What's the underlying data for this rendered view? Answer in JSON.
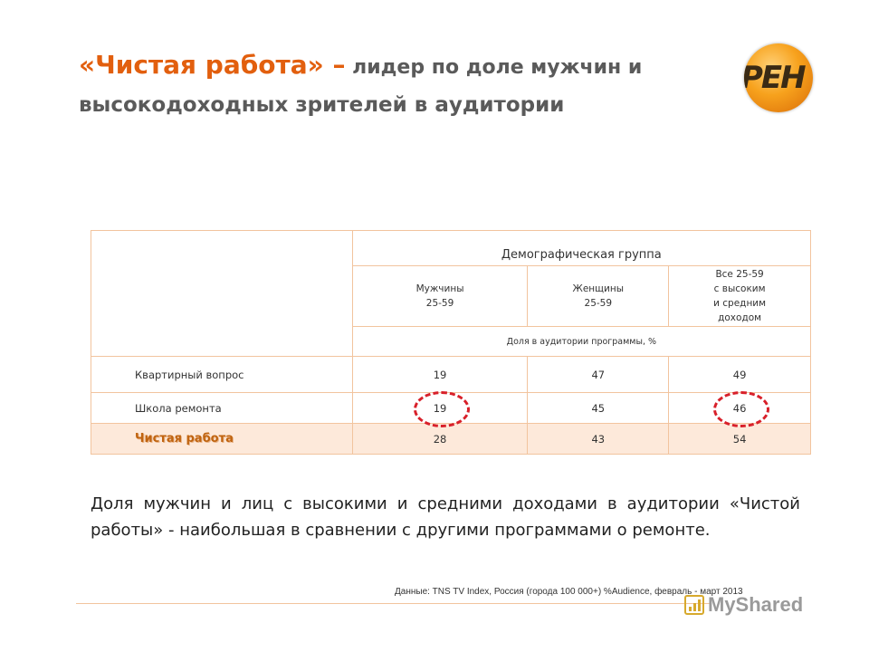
{
  "title": {
    "line1_big": "«Чистая работа» –",
    "line1_small": " лидер по доле  мужчин и",
    "line2": "высокодоходных зрителей в аудитории"
  },
  "logo": {
    "text": "РЕН",
    "color": "#f7a21d"
  },
  "table": {
    "group_header": "Демографическая группа",
    "columns": [
      {
        "l1": "Мужчины",
        "l2": "25-59"
      },
      {
        "l1": "Женщины",
        "l2": "25-59"
      },
      {
        "l1": "Все 25-59",
        "l2": "с высоким",
        "l3": "и средним",
        "l4": "доходом"
      }
    ],
    "share_header": "Доля в аудитории программы, %",
    "rows": [
      {
        "label": "Квартирный вопрос",
        "values": [
          "19",
          "47",
          "49"
        ]
      },
      {
        "label": "Школа ремонта",
        "values": [
          "19",
          "45",
          "46"
        ]
      },
      {
        "label": "Чистая работа",
        "values": [
          "28",
          "43",
          "54"
        ]
      }
    ]
  },
  "caption": "Доля мужчин и лиц с высокими и средними доходами в аудитории «Чистой работы» - наибольшая в сравнении с другими программами о ремонте.",
  "source": "Данные: TNS TV Index, Россия (города 100 000+) %Audience, февраль - март 2013",
  "watermark": "MyShared",
  "colors": {
    "accent": "#e25f0e",
    "border": "#f2c49e",
    "highlight_row": "#fde9da",
    "circle": "#d8202a"
  }
}
